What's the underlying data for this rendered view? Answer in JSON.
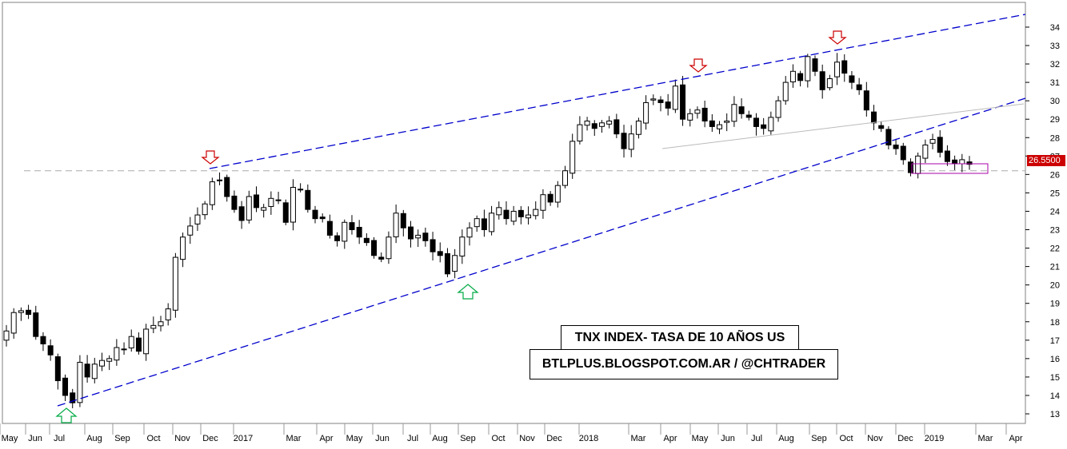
{
  "chart_data": {
    "type": "candlestick",
    "instrument": "TNX",
    "y_axis": {
      "ticks": [
        13,
        14,
        15,
        16,
        17,
        18,
        19,
        20,
        21,
        22,
        23,
        24,
        25,
        26,
        27,
        28,
        29,
        30,
        31,
        32,
        33,
        34
      ],
      "ylim": [
        12.5,
        34.8
      ],
      "position": "right"
    },
    "x_axis": {
      "labels": [
        "May",
        "Jun",
        "Jul",
        "Aug",
        "Sep",
        "Oct",
        "Nov",
        "Dec",
        "2017",
        "Mar",
        "Apr",
        "May",
        "Jun",
        "Jul",
        "Aug",
        "Sep",
        "Oct",
        "Nov",
        "Dec",
        "2018",
        "Mar",
        "Apr",
        "May",
        "Jun",
        "Jul",
        "Aug",
        "Sep",
        "Oct",
        "Nov",
        "Dec",
        "2019",
        "Mar",
        "Apr"
      ]
    },
    "last_price": "26.5500",
    "last_price_value": 26.55,
    "horizontal_line_value": 26.2,
    "weekly_closes": [
      17.5,
      18.5,
      18.6,
      18.4,
      17.2,
      16.8,
      16.2,
      14.8,
      14.0,
      13.6,
      15.8,
      15.0,
      15.7,
      15.9,
      16.0,
      16.6,
      16.5,
      17.2,
      16.4,
      17.6,
      17.8,
      18.0,
      18.7,
      21.5,
      22.6,
      23.2,
      23.8,
      24.4,
      25.6,
      25.7,
      24.8,
      24.1,
      23.5,
      24.8,
      24.2,
      24.2,
      24.7,
      24.6,
      23.4,
      25.3,
      25.2,
      24.1,
      23.6,
      23.6,
      22.7,
      22.4,
      23.4,
      23.0,
      22.6,
      22.3,
      21.6,
      21.4,
      22.6,
      23.9,
      23.1,
      22.5,
      22.7,
      22.4,
      21.8,
      21.6,
      20.6,
      21.6,
      22.6,
      23.1,
      23.6,
      23.0,
      23.9,
      24.2,
      23.6,
      24.0,
      23.7,
      23.8,
      24.1,
      24.9,
      24.5,
      25.4,
      26.2,
      27.8,
      28.7,
      28.9,
      28.5,
      28.8,
      28.9,
      28.2,
      27.4,
      28.2,
      28.9,
      29.9,
      30.1,
      29.9,
      29.6,
      30.8,
      29.0,
      29.3,
      29.5,
      28.9,
      28.6,
      28.7,
      28.9,
      29.8,
      29.3,
      29.1,
      28.6,
      28.5,
      29.1,
      30.0,
      31.0,
      31.6,
      31.1,
      32.4,
      31.6,
      30.6,
      31.2,
      32.1,
      31.5,
      31.0,
      30.6,
      29.5,
      28.8,
      28.5,
      27.6,
      27.4,
      26.8,
      26.1,
      27.0,
      27.6,
      27.9,
      27.2,
      26.7,
      26.6,
      26.8,
      26.55
    ],
    "trendlines": [
      {
        "name": "upper-channel",
        "style": "dashed",
        "color": "#0000cc",
        "x0": 0.0,
        "y0": 26.1,
        "x1": 3.0,
        "y1": 34.6,
        "unit": "years-from-dec-2016"
      },
      {
        "name": "lower-channel",
        "style": "dashed",
        "color": "#0000cc",
        "x0": 0.0,
        "y0": 13.5,
        "x1": 3.0,
        "y1": 30.0,
        "unit": "years-from-jul-2016"
      },
      {
        "name": "neckline",
        "style": "solid",
        "color": "#bbbbbb"
      }
    ],
    "markers": [
      {
        "kind": "up-arrow",
        "color": "#00aa44",
        "at": "Jul 2016"
      },
      {
        "kind": "down-arrow",
        "color": "#cc0000",
        "at": "Dec 2016"
      },
      {
        "kind": "up-arrow",
        "color": "#00aa44",
        "at": "Sep 2017"
      },
      {
        "kind": "down-arrow",
        "color": "#cc0000",
        "at": "May 2018"
      },
      {
        "kind": "down-arrow",
        "color": "#cc0000",
        "at": "Oct 2018"
      }
    ],
    "annotations": {
      "title": "TNX INDEX- TASA DE 10 AÑOS US",
      "source": "BTLPLUS.BLOGSPOT.COM.AR / @CHTRADER"
    },
    "colors": {
      "up": "#ffffff",
      "down": "#000000",
      "channel": "#0000cc",
      "support_box": "#aa00aa"
    }
  }
}
